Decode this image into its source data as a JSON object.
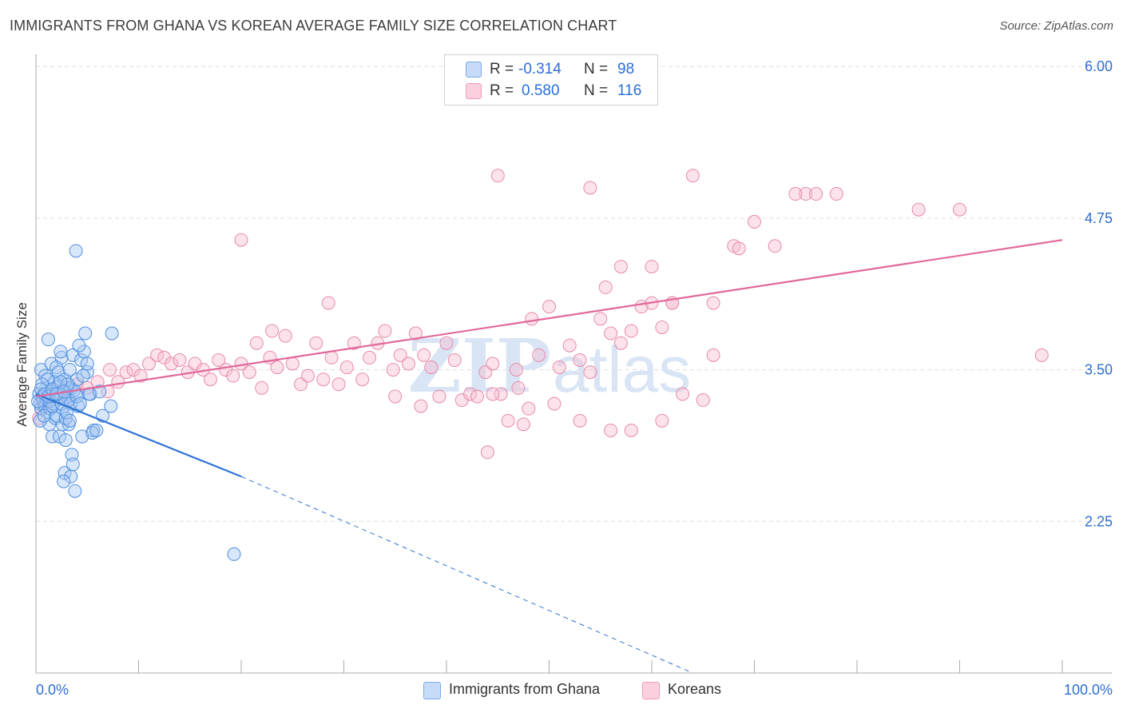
{
  "title": "IMMIGRANTS FROM GHANA VS KOREAN AVERAGE FAMILY SIZE CORRELATION CHART",
  "source": "Source: ZipAtlas.com",
  "legend_top": {
    "rows": [
      {
        "r_label": "R =",
        "r_value": "-0.314",
        "n_label": "N =",
        "n_value": "98"
      },
      {
        "r_label": "R =",
        "r_value": "0.580",
        "n_label": "N =",
        "n_value": "116"
      }
    ]
  },
  "legend_bottom": {
    "ghana": "Immigrants from Ghana",
    "koreans": "Koreans"
  },
  "colors": {
    "ghana_fill": "#a9c8f2",
    "ghana_stroke": "#4d8fe0",
    "ghana_line": "#2e74d3",
    "koreans_fill": "#f7bfd2",
    "koreans_stroke": "#e88aaa",
    "koreans_line": "#e0689a",
    "tick_text": "#2e6fd2",
    "grid": "#dddddd",
    "watermark": "#d9e5f5"
  },
  "chart_data": {
    "type": "scatter",
    "title": "IMMIGRANTS FROM GHANA VS KOREAN AVERAGE FAMILY SIZE CORRELATION CHART",
    "xlabel": "",
    "ylabel": "Average Family Size",
    "xlim": [
      0,
      100
    ],
    "ylim": [
      1.0,
      6.1
    ],
    "x_tick_labels": [
      "0.0%",
      "100.0%"
    ],
    "y_ticks": [
      2.25,
      3.5,
      4.75,
      6.0
    ],
    "y_tick_labels": [
      "2.25",
      "3.50",
      "4.75",
      "6.00"
    ],
    "grid": true,
    "legend_position": "top-center",
    "watermark": {
      "bold": "ZIP",
      "light": "atlas"
    },
    "series": [
      {
        "name": "Immigrants from Ghana",
        "r": -0.314,
        "n": 98,
        "trend": {
          "x0": 0,
          "y0": 3.3,
          "x1": 20,
          "y1": 2.62,
          "dashed_to_x": 64,
          "dashed_to_y": 1.0
        },
        "points": [
          [
            0.3,
            3.3
          ],
          [
            0.4,
            3.22
          ],
          [
            0.5,
            3.18
          ],
          [
            0.6,
            3.28
          ],
          [
            0.7,
            3.25
          ],
          [
            0.8,
            3.3
          ],
          [
            0.9,
            3.2
          ],
          [
            1.0,
            3.35
          ],
          [
            1.1,
            3.15
          ],
          [
            1.2,
            3.3
          ],
          [
            0.5,
            3.5
          ],
          [
            0.9,
            3.45
          ],
          [
            1.2,
            3.75
          ],
          [
            1.5,
            3.55
          ],
          [
            1.8,
            3.4
          ],
          [
            2.0,
            3.52
          ],
          [
            2.2,
            3.48
          ],
          [
            2.5,
            3.6
          ],
          [
            2.8,
            3.42
          ],
          [
            3.0,
            3.35
          ],
          [
            1.3,
            3.05
          ],
          [
            1.6,
            2.95
          ],
          [
            1.9,
            3.1
          ],
          [
            2.3,
            2.95
          ],
          [
            2.6,
            3.05
          ],
          [
            2.9,
            2.92
          ],
          [
            3.2,
            3.05
          ],
          [
            3.5,
            2.8
          ],
          [
            3.8,
            2.5
          ],
          [
            2.8,
            2.65
          ],
          [
            3.0,
            3.38
          ],
          [
            3.3,
            3.5
          ],
          [
            3.6,
            3.62
          ],
          [
            3.9,
            3.3
          ],
          [
            4.1,
            3.2
          ],
          [
            4.4,
            3.58
          ],
          [
            4.7,
            3.65
          ],
          [
            5.0,
            3.48
          ],
          [
            5.3,
            3.3
          ],
          [
            5.6,
            3.0
          ],
          [
            3.4,
            2.62
          ],
          [
            3.6,
            2.72
          ],
          [
            2.7,
            2.58
          ],
          [
            4.5,
            2.95
          ],
          [
            5.5,
            2.98
          ],
          [
            5.9,
            3.0
          ],
          [
            6.5,
            3.12
          ],
          [
            7.3,
            3.2
          ],
          [
            7.4,
            3.8
          ],
          [
            4.8,
            3.8
          ],
          [
            1.4,
            3.32
          ],
          [
            1.7,
            3.3
          ],
          [
            2.1,
            3.25
          ],
          [
            2.4,
            3.28
          ],
          [
            2.6,
            3.33
          ],
          [
            2.9,
            3.3
          ],
          [
            3.1,
            3.28
          ],
          [
            3.4,
            3.35
          ],
          [
            3.7,
            3.33
          ],
          [
            4.0,
            3.42
          ],
          [
            0.4,
            3.08
          ],
          [
            0.8,
            3.12
          ],
          [
            1.1,
            3.42
          ],
          [
            1.4,
            3.18
          ],
          [
            1.7,
            3.22
          ],
          [
            2.0,
            3.12
          ],
          [
            2.3,
            3.3
          ],
          [
            2.6,
            3.18
          ],
          [
            2.9,
            3.1
          ],
          [
            3.2,
            3.25
          ],
          [
            0.6,
            3.38
          ],
          [
            1.0,
            3.26
          ],
          [
            1.3,
            3.24
          ],
          [
            1.6,
            3.2
          ],
          [
            1.9,
            3.28
          ],
          [
            2.2,
            3.36
          ],
          [
            2.5,
            3.22
          ],
          [
            2.8,
            3.26
          ],
          [
            3.1,
            3.38
          ],
          [
            3.4,
            3.22
          ],
          [
            0.2,
            3.24
          ],
          [
            0.5,
            3.34
          ],
          [
            0.9,
            3.3
          ],
          [
            1.2,
            3.28
          ],
          [
            1.6,
            3.34
          ],
          [
            2.0,
            3.3
          ],
          [
            2.4,
            3.4
          ],
          [
            2.7,
            3.32
          ],
          [
            3.0,
            3.15
          ],
          [
            3.3,
            3.08
          ],
          [
            4.0,
            3.28
          ],
          [
            4.3,
            3.22
          ],
          [
            4.6,
            3.45
          ],
          [
            5.0,
            3.55
          ],
          [
            5.2,
            3.3
          ],
          [
            4.2,
            3.7
          ],
          [
            2.4,
            3.65
          ],
          [
            3.9,
            4.48
          ],
          [
            19.3,
            1.98
          ],
          [
            6.2,
            3.32
          ]
        ]
      },
      {
        "name": "Koreans",
        "r": 0.58,
        "n": 116,
        "trend": {
          "x0": 0,
          "y0": 3.28,
          "x1": 100,
          "y1": 4.57
        },
        "points": [
          [
            0.3,
            3.1
          ],
          [
            0.6,
            3.18
          ],
          [
            1.0,
            3.25
          ],
          [
            1.5,
            3.2
          ],
          [
            2.0,
            3.3
          ],
          [
            3.0,
            3.25
          ],
          [
            4.0,
            3.38
          ],
          [
            5.0,
            3.35
          ],
          [
            6.0,
            3.4
          ],
          [
            7.0,
            3.32
          ],
          [
            7.2,
            3.5
          ],
          [
            8.0,
            3.4
          ],
          [
            8.8,
            3.48
          ],
          [
            9.5,
            3.5
          ],
          [
            10.2,
            3.45
          ],
          [
            11.0,
            3.55
          ],
          [
            11.8,
            3.62
          ],
          [
            12.5,
            3.6
          ],
          [
            13.2,
            3.55
          ],
          [
            14.0,
            3.58
          ],
          [
            14.8,
            3.48
          ],
          [
            15.5,
            3.55
          ],
          [
            16.3,
            3.5
          ],
          [
            17.0,
            3.42
          ],
          [
            17.8,
            3.58
          ],
          [
            18.5,
            3.5
          ],
          [
            19.2,
            3.45
          ],
          [
            20.0,
            3.55
          ],
          [
            20.8,
            3.48
          ],
          [
            21.5,
            3.72
          ],
          [
            22.0,
            3.35
          ],
          [
            22.8,
            3.6
          ],
          [
            23.5,
            3.52
          ],
          [
            24.3,
            3.78
          ],
          [
            25.0,
            3.55
          ],
          [
            25.8,
            3.38
          ],
          [
            26.5,
            3.45
          ],
          [
            27.3,
            3.72
          ],
          [
            28.0,
            3.42
          ],
          [
            28.8,
            3.6
          ],
          [
            29.5,
            3.38
          ],
          [
            30.3,
            3.52
          ],
          [
            31.0,
            3.72
          ],
          [
            31.8,
            3.42
          ],
          [
            32.5,
            3.6
          ],
          [
            33.3,
            3.72
          ],
          [
            34.0,
            3.82
          ],
          [
            34.8,
            3.5
          ],
          [
            35.5,
            3.62
          ],
          [
            36.3,
            3.55
          ],
          [
            37.0,
            3.8
          ],
          [
            37.8,
            3.62
          ],
          [
            38.5,
            3.52
          ],
          [
            39.3,
            3.28
          ],
          [
            40.0,
            3.72
          ],
          [
            40.8,
            3.58
          ],
          [
            41.5,
            3.25
          ],
          [
            42.3,
            3.3
          ],
          [
            43.0,
            3.28
          ],
          [
            43.8,
            3.48
          ],
          [
            44.5,
            3.55
          ],
          [
            45.3,
            3.3
          ],
          [
            46.0,
            3.08
          ],
          [
            46.8,
            3.5
          ],
          [
            47.5,
            3.05
          ],
          [
            48.3,
            3.92
          ],
          [
            49.0,
            3.62
          ],
          [
            50.0,
            4.02
          ],
          [
            51.0,
            3.52
          ],
          [
            52.0,
            3.7
          ],
          [
            53.0,
            3.58
          ],
          [
            54.0,
            3.48
          ],
          [
            55.0,
            3.92
          ],
          [
            56.0,
            3.8
          ],
          [
            57.0,
            3.72
          ],
          [
            58.0,
            3.82
          ],
          [
            59.0,
            4.02
          ],
          [
            60.0,
            4.05
          ],
          [
            61.0,
            3.85
          ],
          [
            62.0,
            4.05
          ],
          [
            20.0,
            4.57
          ],
          [
            23.0,
            3.82
          ],
          [
            28.5,
            4.05
          ],
          [
            35.0,
            3.28
          ],
          [
            37.5,
            3.2
          ],
          [
            44.0,
            2.82
          ],
          [
            44.5,
            3.3
          ],
          [
            47.0,
            3.35
          ],
          [
            48.0,
            3.18
          ],
          [
            50.5,
            3.22
          ],
          [
            53.0,
            3.08
          ],
          [
            56.0,
            3.0
          ],
          [
            58.0,
            3.0
          ],
          [
            61.0,
            3.08
          ],
          [
            63.0,
            3.3
          ],
          [
            65.0,
            3.25
          ],
          [
            66.0,
            3.62
          ],
          [
            55.5,
            4.18
          ],
          [
            57.0,
            4.35
          ],
          [
            60.0,
            4.35
          ],
          [
            62.0,
            4.05
          ],
          [
            66.0,
            4.05
          ],
          [
            68.0,
            4.52
          ],
          [
            70.0,
            4.72
          ],
          [
            72.0,
            4.52
          ],
          [
            75.0,
            4.95
          ],
          [
            76.0,
            4.95
          ],
          [
            78.0,
            4.95
          ],
          [
            86.0,
            4.82
          ],
          [
            90.0,
            4.82
          ],
          [
            98.0,
            3.62
          ],
          [
            45.0,
            5.1
          ],
          [
            54.0,
            5.0
          ],
          [
            64.0,
            5.1
          ],
          [
            68.5,
            4.5
          ],
          [
            74.0,
            4.95
          ]
        ]
      }
    ]
  }
}
